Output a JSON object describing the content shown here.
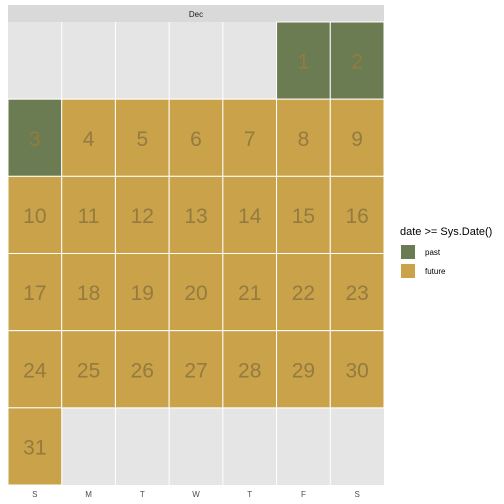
{
  "chart_data": {
    "type": "heatmap",
    "facet_label": "Dec",
    "weekday_labels": [
      "S",
      "M",
      "T",
      "W",
      "T",
      "F",
      "S"
    ],
    "first_weekday_index": 5,
    "days_in_month": 31,
    "days": [
      {
        "day": "1",
        "status": "past"
      },
      {
        "day": "2",
        "status": "past"
      },
      {
        "day": "3",
        "status": "past"
      },
      {
        "day": "4",
        "status": "future"
      },
      {
        "day": "5",
        "status": "future"
      },
      {
        "day": "6",
        "status": "future"
      },
      {
        "day": "7",
        "status": "future"
      },
      {
        "day": "8",
        "status": "future"
      },
      {
        "day": "9",
        "status": "future"
      },
      {
        "day": "10",
        "status": "future"
      },
      {
        "day": "11",
        "status": "future"
      },
      {
        "day": "12",
        "status": "future"
      },
      {
        "day": "13",
        "status": "future"
      },
      {
        "day": "14",
        "status": "future"
      },
      {
        "day": "15",
        "status": "future"
      },
      {
        "day": "16",
        "status": "future"
      },
      {
        "day": "17",
        "status": "future"
      },
      {
        "day": "18",
        "status": "future"
      },
      {
        "day": "19",
        "status": "future"
      },
      {
        "day": "20",
        "status": "future"
      },
      {
        "day": "21",
        "status": "future"
      },
      {
        "day": "22",
        "status": "future"
      },
      {
        "day": "23",
        "status": "future"
      },
      {
        "day": "24",
        "status": "future"
      },
      {
        "day": "25",
        "status": "future"
      },
      {
        "day": "26",
        "status": "future"
      },
      {
        "day": "27",
        "status": "future"
      },
      {
        "day": "28",
        "status": "future"
      },
      {
        "day": "29",
        "status": "future"
      },
      {
        "day": "30",
        "status": "future"
      },
      {
        "day": "31",
        "status": "future"
      }
    ],
    "legend": {
      "title": "date >= Sys.Date()",
      "placement": "right",
      "items": [
        {
          "key": "past",
          "label": "past",
          "color": "#6b7b52"
        },
        {
          "key": "future",
          "label": "future",
          "color": "#c9a24a"
        }
      ]
    },
    "colors": {
      "panel_background": "#e5e5e5",
      "strip_background": "#d9d9d9",
      "grid_line": "#ffffff",
      "day_number_text": "#947b3f"
    }
  }
}
